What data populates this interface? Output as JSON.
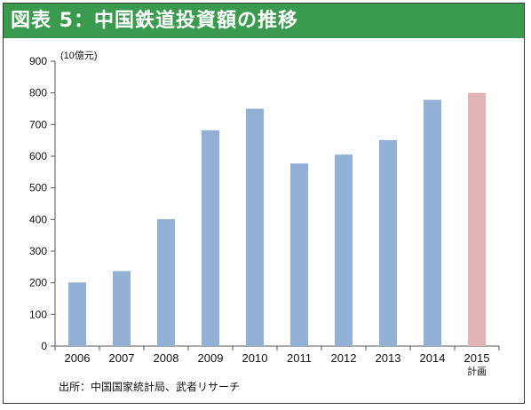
{
  "title": "図表 5：中国鉄道投資額の推移",
  "unit_label": "(10億元)",
  "source": "出所：中国国家統計局、武者リサーチ",
  "colors": {
    "actual": "#92b0d6",
    "plan": "#e3b4b6",
    "header": "#3a9a4e"
  },
  "chart_data": {
    "type": "bar",
    "categories": [
      "2006",
      "2007",
      "2008",
      "2009",
      "2010",
      "2011",
      "2012",
      "2013",
      "2014",
      "2015"
    ],
    "category_notes": [
      "",
      "",
      "",
      "",
      "",
      "",
      "",
      "",
      "",
      "計画"
    ],
    "values": [
      201,
      237,
      401,
      682,
      750,
      577,
      605,
      651,
      778,
      800
    ],
    "planned": [
      false,
      false,
      false,
      false,
      false,
      false,
      false,
      false,
      false,
      true
    ],
    "ylim": [
      0,
      900
    ],
    "yticks": [
      0,
      100,
      200,
      300,
      400,
      500,
      600,
      700,
      800,
      900
    ],
    "grid": false
  }
}
